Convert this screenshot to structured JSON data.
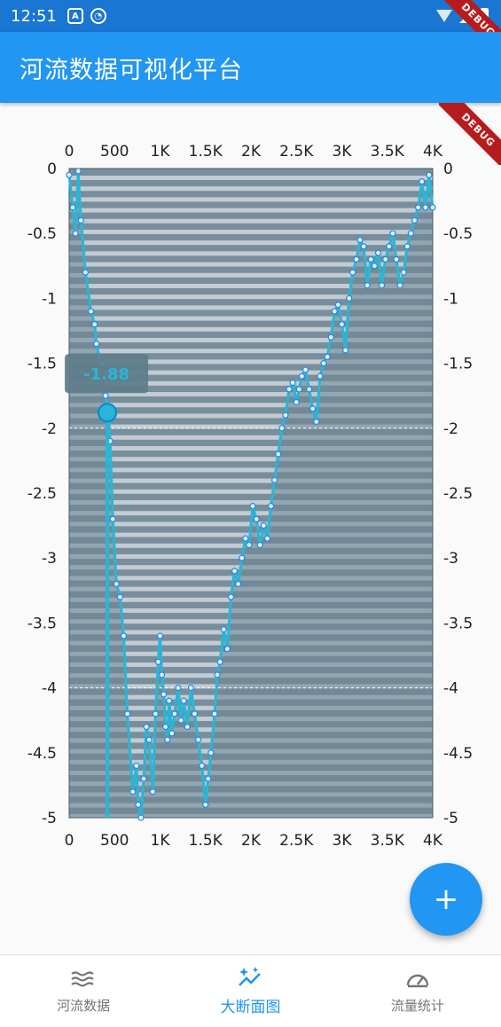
{
  "status_bar": {
    "time": "12:51",
    "icon_a": "A"
  },
  "app_bar": {
    "title": "河流数据可视化平台"
  },
  "debug_label": "DEBUG",
  "fab": {
    "label": "+"
  },
  "bottom_nav": {
    "items": [
      {
        "label": "河流数据",
        "icon": "waves-icon",
        "active": false
      },
      {
        "label": "大断面图",
        "icon": "sparkle-chart-icon",
        "active": true
      },
      {
        "label": "流量统计",
        "icon": "gauge-icon",
        "active": false
      }
    ]
  },
  "colors": {
    "line": "#29b6d6",
    "plot_bg": "#788e9c",
    "primary": "#2196f3",
    "status": "#1976d2"
  },
  "chart_data": {
    "type": "line",
    "title": "",
    "xlabel": "",
    "ylabel": "",
    "xlim": [
      0,
      4000
    ],
    "ylim": [
      -5,
      0
    ],
    "x_ticks": [
      0,
      500,
      1000,
      1500,
      2000,
      2500,
      3000,
      3500,
      4000
    ],
    "x_tick_labels": [
      "0",
      "500",
      "1K",
      "1.5K",
      "2K",
      "2.5K",
      "3K",
      "3.5K",
      "4K"
    ],
    "y_ticks": [
      0,
      -0.5,
      -1,
      -1.5,
      -2,
      -2.5,
      -3,
      -3.5,
      -4,
      -4.5,
      -5
    ],
    "y_tick_labels": [
      "0",
      "-0.5",
      "-1",
      "-1.5",
      "-2",
      "-2.5",
      "-3",
      "-3.5",
      "-4",
      "-4.5",
      "-5"
    ],
    "tooltip": {
      "x": 420,
      "y": -1.88,
      "label": "-1.88"
    },
    "series": [
      {
        "x": [
          0,
          40,
          70,
          100,
          130,
          180,
          240,
          280,
          300,
          330,
          360,
          380,
          400,
          430,
          450,
          480,
          520,
          560,
          600,
          640,
          700,
          740,
          760,
          790,
          820,
          850,
          880,
          920,
          950,
          980,
          1000,
          1020,
          1040,
          1060,
          1080,
          1100,
          1130,
          1160,
          1200,
          1230,
          1260,
          1300,
          1340,
          1380,
          1420,
          1460,
          1500,
          1530,
          1560,
          1600,
          1630,
          1660,
          1700,
          1740,
          1780,
          1820,
          1860,
          1900,
          1940,
          1980,
          2020,
          2060,
          2100,
          2140,
          2180,
          2220,
          2260,
          2300,
          2340,
          2380,
          2420,
          2460,
          2500,
          2530,
          2560,
          2600,
          2640,
          2680,
          2720,
          2760,
          2800,
          2840,
          2880,
          2920,
          2960,
          3000,
          3040,
          3080,
          3120,
          3160,
          3200,
          3240,
          3280,
          3320,
          3360,
          3400,
          3440,
          3480,
          3520,
          3560,
          3600,
          3640,
          3680,
          3720,
          3760,
          3800,
          3840,
          3880,
          3920,
          3960,
          4000
        ],
        "y": [
          -0.05,
          -0.3,
          -0.5,
          -0.02,
          -0.4,
          -0.8,
          -1.1,
          -1.2,
          -1.35,
          -1.45,
          -1.5,
          -1.6,
          -1.75,
          -1.88,
          -2.1,
          -2.7,
          -3.2,
          -3.3,
          -3.6,
          -4.2,
          -4.8,
          -4.6,
          -4.9,
          -5.0,
          -4.7,
          -4.3,
          -4.4,
          -4.8,
          -4.2,
          -3.8,
          -3.6,
          -3.9,
          -4.05,
          -4.3,
          -4.4,
          -4.1,
          -4.35,
          -4.2,
          -4.0,
          -4.25,
          -4.1,
          -4.3,
          -4.0,
          -4.2,
          -4.4,
          -4.6,
          -4.9,
          -4.7,
          -4.5,
          -4.2,
          -3.9,
          -3.8,
          -3.55,
          -3.7,
          -3.3,
          -3.1,
          -3.2,
          -3.0,
          -2.85,
          -2.9,
          -2.6,
          -2.7,
          -2.9,
          -2.75,
          -2.85,
          -2.6,
          -2.4,
          -2.2,
          -2.0,
          -1.9,
          -1.7,
          -1.65,
          -1.8,
          -1.7,
          -1.6,
          -1.55,
          -1.7,
          -1.85,
          -1.95,
          -1.6,
          -1.5,
          -1.45,
          -1.3,
          -1.1,
          -1.05,
          -1.2,
          -1.4,
          -1.0,
          -0.8,
          -0.7,
          -0.55,
          -0.6,
          -0.9,
          -0.7,
          -0.75,
          -0.65,
          -0.9,
          -0.7,
          -0.6,
          -0.5,
          -0.7,
          -0.9,
          -0.8,
          -0.6,
          -0.5,
          -0.4,
          -0.3,
          -0.1,
          -0.3,
          -0.05,
          -0.3
        ]
      }
    ]
  }
}
